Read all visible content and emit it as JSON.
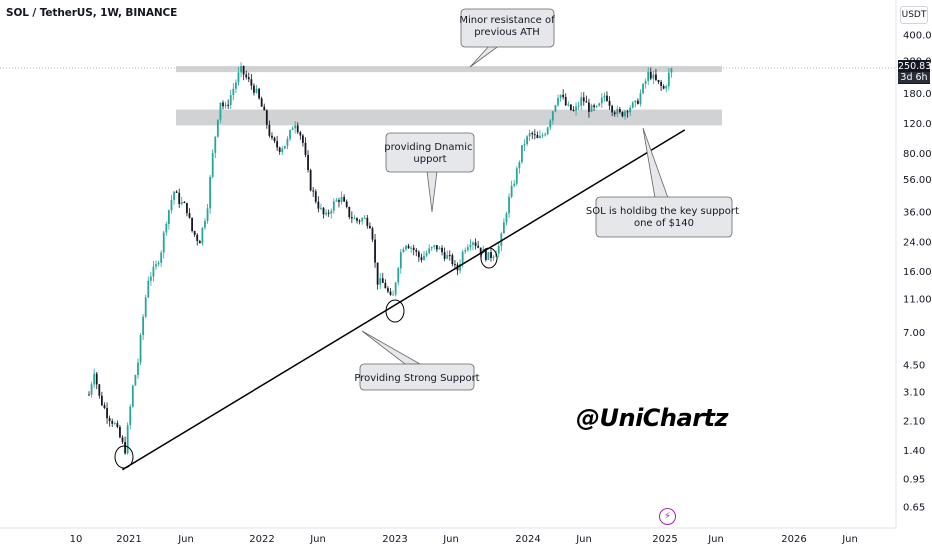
{
  "header": {
    "title": "SOL / TetherUS, 1W, BINANCE"
  },
  "currency": "USDT",
  "last_price": {
    "value": "250.83",
    "countdown": "3d 6h"
  },
  "watermark": "@UniChartz",
  "lightning_icon": "lightning-icon",
  "colors": {
    "up": "#26a69a",
    "down": "#131722",
    "zone": "#c9cacd",
    "trendline": "#000000"
  },
  "chart_data": {
    "type": "candlestick",
    "title": "SOL / TetherUS, 1W, BINANCE",
    "y_scale": "log",
    "y_ticks": [
      "400.00",
      "280.00",
      "180.00",
      "120.00",
      "80.00",
      "56.00",
      "36.00",
      "24.00",
      "16.00",
      "11.00",
      "7.00",
      "4.50",
      "3.10",
      "2.10",
      "1.40",
      "0.95",
      "0.65"
    ],
    "x_ticks": [
      "10",
      "2021",
      "Jun",
      "2022",
      "Jun",
      "2023",
      "Jun",
      "2024",
      "Jun",
      "2025",
      "Jun",
      "2026",
      "Jun"
    ],
    "close_path": [
      [
        "2020-09-14",
        3.0
      ],
      [
        "2020-09-28",
        4.2
      ],
      [
        "2020-10-12",
        2.9
      ],
      [
        "2020-11-02",
        2.3
      ],
      [
        "2020-11-23",
        2.0
      ],
      [
        "2020-12-21",
        1.4
      ],
      [
        "2021-01-11",
        3.3
      ],
      [
        "2021-01-25",
        4.6
      ],
      [
        "2021-02-08",
        8.5
      ],
      [
        "2021-02-22",
        14.5
      ],
      [
        "2021-03-15",
        17.0
      ],
      [
        "2021-03-29",
        21.0
      ],
      [
        "2021-04-12",
        32.0
      ],
      [
        "2021-05-03",
        48.0
      ],
      [
        "2021-05-17",
        42.0
      ],
      [
        "2021-06-07",
        38.0
      ],
      [
        "2021-06-21",
        28.0
      ],
      [
        "2021-07-12",
        24.0
      ],
      [
        "2021-08-02",
        38.0
      ],
      [
        "2021-08-16",
        75.0
      ],
      [
        "2021-09-06",
        165.0
      ],
      [
        "2021-09-20",
        145.0
      ],
      [
        "2021-10-11",
        190.0
      ],
      [
        "2021-11-01",
        250.0
      ],
      [
        "2021-11-22",
        215.0
      ],
      [
        "2021-12-13",
        185.0
      ],
      [
        "2022-01-03",
        140.0
      ],
      [
        "2022-01-24",
        95.0
      ],
      [
        "2022-02-14",
        85.0
      ],
      [
        "2022-03-07",
        92.0
      ],
      [
        "2022-03-28",
        125.0
      ],
      [
        "2022-04-18",
        98.0
      ],
      [
        "2022-05-09",
        52.0
      ],
      [
        "2022-05-30",
        40.0
      ],
      [
        "2022-06-20",
        33.0
      ],
      [
        "2022-07-11",
        40.0
      ],
      [
        "2022-08-01",
        44.0
      ],
      [
        "2022-08-22",
        35.0
      ],
      [
        "2022-09-12",
        32.0
      ],
      [
        "2022-10-03",
        33.0
      ],
      [
        "2022-10-24",
        30.0
      ],
      [
        "2022-11-07",
        14.0
      ],
      [
        "2022-11-28",
        13.5
      ],
      [
        "2022-12-19",
        10.5
      ],
      [
        "2023-01-09",
        20.0
      ],
      [
        "2023-01-23",
        24.0
      ],
      [
        "2023-02-13",
        22.0
      ],
      [
        "2023-03-06",
        19.0
      ],
      [
        "2023-03-27",
        21.0
      ],
      [
        "2023-04-17",
        22.5
      ],
      [
        "2023-05-08",
        20.5
      ],
      [
        "2023-06-05",
        18.0
      ],
      [
        "2023-06-12",
        15.5
      ],
      [
        "2023-07-03",
        22.0
      ],
      [
        "2023-07-24",
        25.0
      ],
      [
        "2023-08-14",
        22.0
      ],
      [
        "2023-09-04",
        19.5
      ],
      [
        "2023-09-18",
        20.0
      ],
      [
        "2023-10-09",
        23.0
      ],
      [
        "2023-10-30",
        40.0
      ],
      [
        "2023-11-20",
        58.0
      ],
      [
        "2023-12-11",
        90.0
      ],
      [
        "2024-01-01",
        105.0
      ],
      [
        "2024-01-22",
        95.0
      ],
      [
        "2024-02-12",
        110.0
      ],
      [
        "2024-03-04",
        150.0
      ],
      [
        "2024-03-18",
        185.0
      ],
      [
        "2024-04-08",
        150.0
      ],
      [
        "2024-04-29",
        140.0
      ],
      [
        "2024-05-20",
        170.0
      ],
      [
        "2024-06-10",
        145.0
      ],
      [
        "2024-07-01",
        145.0
      ],
      [
        "2024-07-22",
        180.0
      ],
      [
        "2024-08-12",
        145.0
      ],
      [
        "2024-09-02",
        135.0
      ],
      [
        "2024-09-23",
        150.0
      ],
      [
        "2024-10-14",
        155.0
      ],
      [
        "2024-11-04",
        200.0
      ],
      [
        "2024-11-18",
        240.0
      ],
      [
        "2024-12-09",
        210.0
      ],
      [
        "2024-12-30",
        190.0
      ],
      [
        "2025-01-13",
        240.0
      ],
      [
        "2025-01-20",
        250.83
      ]
    ],
    "zones": [
      {
        "name": "Minor resistance of previous ATH",
        "low": 243,
        "high": 262
      },
      {
        "name": "key support zone",
        "low": 117,
        "high": 145
      }
    ],
    "trendline": [
      [
        "2020-12-14",
        1.08
      ],
      [
        "2025-02-24",
        110.0
      ]
    ],
    "annotations": [
      "Minor resistance of previous ATH",
      "providing Dnamic Support",
      "SOL is holdibg the key support zone of $140",
      "Providing Strong Support"
    ]
  }
}
